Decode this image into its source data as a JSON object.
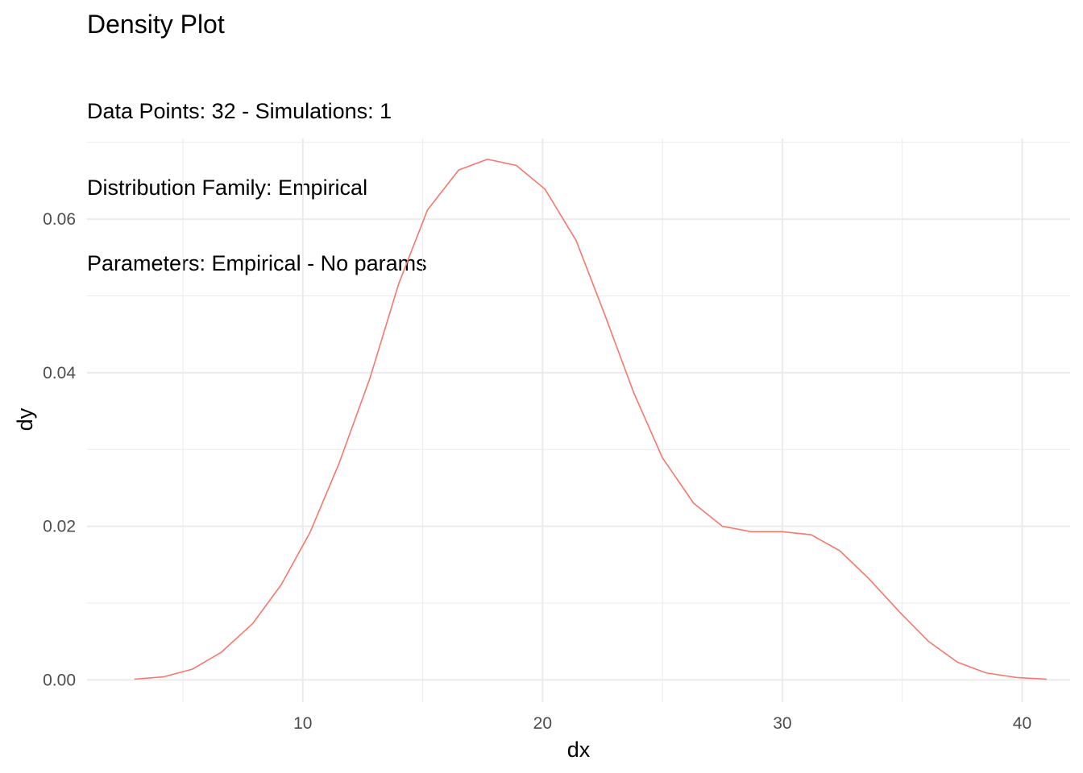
{
  "chart_data": {
    "type": "line",
    "title": "Density Plot",
    "subtitle_lines": [
      "Data Points: 32 - Simulations: 1",
      "Distribution Family: Empirical",
      "Parameters: Empirical - No params"
    ],
    "xlabel": "dx",
    "ylabel": "dy",
    "xlim": [
      1.0,
      42.0
    ],
    "ylim": [
      -0.0029,
      0.0705
    ],
    "x_ticks": [
      10,
      20,
      30,
      40
    ],
    "x_tick_labels": [
      "10",
      "20",
      "30",
      "40"
    ],
    "y_ticks": [
      0.0,
      0.02,
      0.04,
      0.06
    ],
    "y_tick_labels": [
      "0.00",
      "0.02",
      "0.04",
      "0.06"
    ],
    "grid": true,
    "legend": "none",
    "series": [
      {
        "color": "#f8766d",
        "x": [
          3.0,
          4.2,
          5.4,
          6.6,
          7.9,
          9.1,
          10.3,
          11.5,
          12.8,
          14.0,
          15.2,
          16.5,
          17.7,
          18.9,
          20.1,
          21.4,
          22.6,
          23.8,
          25.0,
          26.3,
          27.5,
          28.7,
          30.0,
          31.2,
          32.4,
          33.6,
          34.9,
          36.1,
          37.3,
          38.5,
          39.8,
          41.0
        ],
        "y": [
          0.0001,
          0.0004,
          0.0014,
          0.0036,
          0.0073,
          0.0124,
          0.0192,
          0.0281,
          0.0393,
          0.0516,
          0.0612,
          0.0664,
          0.0678,
          0.067,
          0.0639,
          0.0572,
          0.0475,
          0.0374,
          0.0289,
          0.023,
          0.02,
          0.0193,
          0.0193,
          0.0189,
          0.0168,
          0.0132,
          0.0088,
          0.005,
          0.0023,
          0.0009,
          0.0003,
          0.0001
        ]
      }
    ]
  }
}
